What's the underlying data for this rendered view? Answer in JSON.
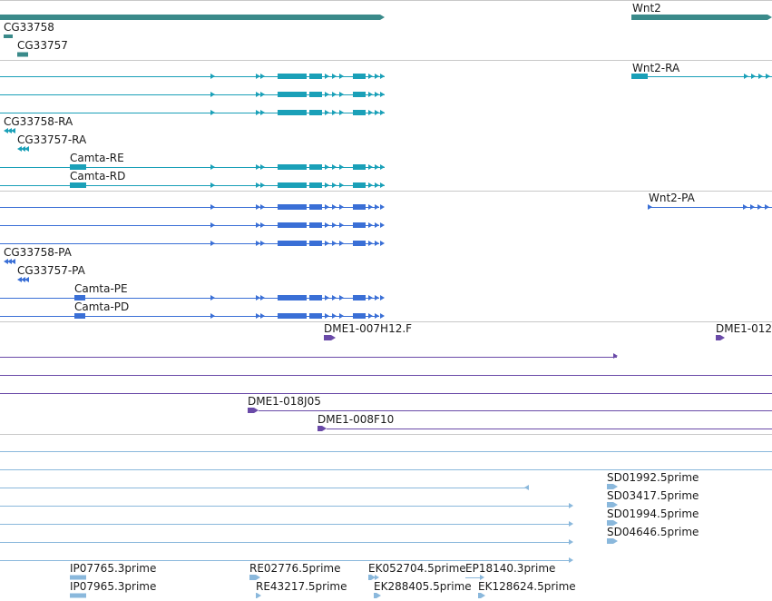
{
  "colors": {
    "gene": "#3a8a8a",
    "transcript_ra": "#1aa0b8",
    "transcript_pa": "#3a6fd6",
    "clone": "#6a4aa8",
    "est": "#8ab8dc",
    "divider": "#c8c8c8"
  },
  "tracks": {
    "genes": {
      "labels": [
        "Wnt2",
        "CG33758",
        "CG33757"
      ]
    },
    "transcripts_ra": {
      "labels": [
        "Wnt2-RA",
        "CG33758-RA",
        "CG33757-RA",
        "Camta-RE",
        "Camta-RD"
      ]
    },
    "transcripts_pa": {
      "labels": [
        "Wnt2-PA",
        "CG33758-PA",
        "CG33757-PA",
        "Camta-PE",
        "Camta-PD"
      ]
    },
    "clones": {
      "labels": [
        "DME1-007H12.F",
        "DME1-012",
        "DME1-018J05",
        "DME1-008F10"
      ]
    },
    "ests": {
      "right_labels": [
        "SD01992.5prime",
        "SD03417.5prime",
        "SD01994.5prime",
        "SD04646.5prime"
      ],
      "bottom_labels": [
        "IP07765.3prime",
        "IP07965.3prime",
        "RE02776.5prime",
        "RE43217.5prime",
        "EK052704.5prime",
        "EK288405.5prime",
        "EP18140.3prime",
        "EK128624.5prime"
      ]
    }
  }
}
